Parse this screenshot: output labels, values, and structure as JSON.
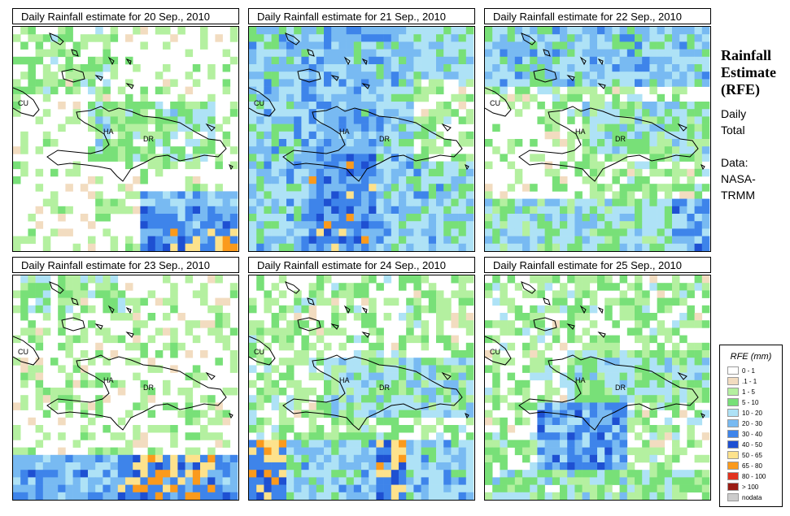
{
  "panels": [
    {
      "title": "Daily Rainfall estimate for  20 Sep., 2010",
      "label_cu": "CU",
      "label_ha": "HA",
      "label_dr": "DR"
    },
    {
      "title": "Daily Rainfall estimate for  21 Sep., 2010",
      "label_cu": "CU",
      "label_ha": "HA",
      "label_dr": "DR"
    },
    {
      "title": "Daily Rainfall estimate for  22 Sep., 2010",
      "label_cu": "CU",
      "label_ha": "HA",
      "label_dr": "DR"
    },
    {
      "title": "Daily Rainfall estimate for  23 Sep., 2010",
      "label_cu": "CU",
      "label_ha": "HA",
      "label_dr": "DR"
    },
    {
      "title": "Daily Rainfall estimate for  24 Sep., 2010",
      "label_cu": "CU",
      "label_ha": "HA",
      "label_dr": "DR"
    },
    {
      "title": "Daily Rainfall estimate for  25 Sep., 2010",
      "label_cu": "CU",
      "label_ha": "HA",
      "label_dr": "DR"
    }
  ],
  "side": {
    "title_line1": "Rainfall",
    "title_line2": "Estimate",
    "title_line3": "(RFE)",
    "period_line1": "Daily",
    "period_line2": "Total",
    "source_line1": "Data:",
    "source_line2": "NASA-",
    "source_line3": "TRMM"
  },
  "legend": {
    "title": "RFE (mm)",
    "classes": [
      {
        "label": "0 - 1",
        "color": "#ffffff"
      },
      {
        "label": ".1 - 1",
        "color": "#f2dcc0"
      },
      {
        "label": "1 - 5",
        "color": "#b4f0a0"
      },
      {
        "label": "5 - 10",
        "color": "#78e078"
      },
      {
        "label": "10 - 20",
        "color": "#aee2f6"
      },
      {
        "label": "20 - 30",
        "color": "#78baf2"
      },
      {
        "label": "30 - 40",
        "color": "#3e84ea"
      },
      {
        "label": "40 - 50",
        "color": "#1e50d2"
      },
      {
        "label": "50 - 65",
        "color": "#fde28c"
      },
      {
        "label": "65 - 80",
        "color": "#fb9a1c"
      },
      {
        "label": "80 - 100",
        "color": "#e2321e"
      },
      {
        "label": "> 100",
        "color": "#9a1c14"
      },
      {
        "label": "nodata",
        "color": "#cccccc"
      }
    ]
  }
}
